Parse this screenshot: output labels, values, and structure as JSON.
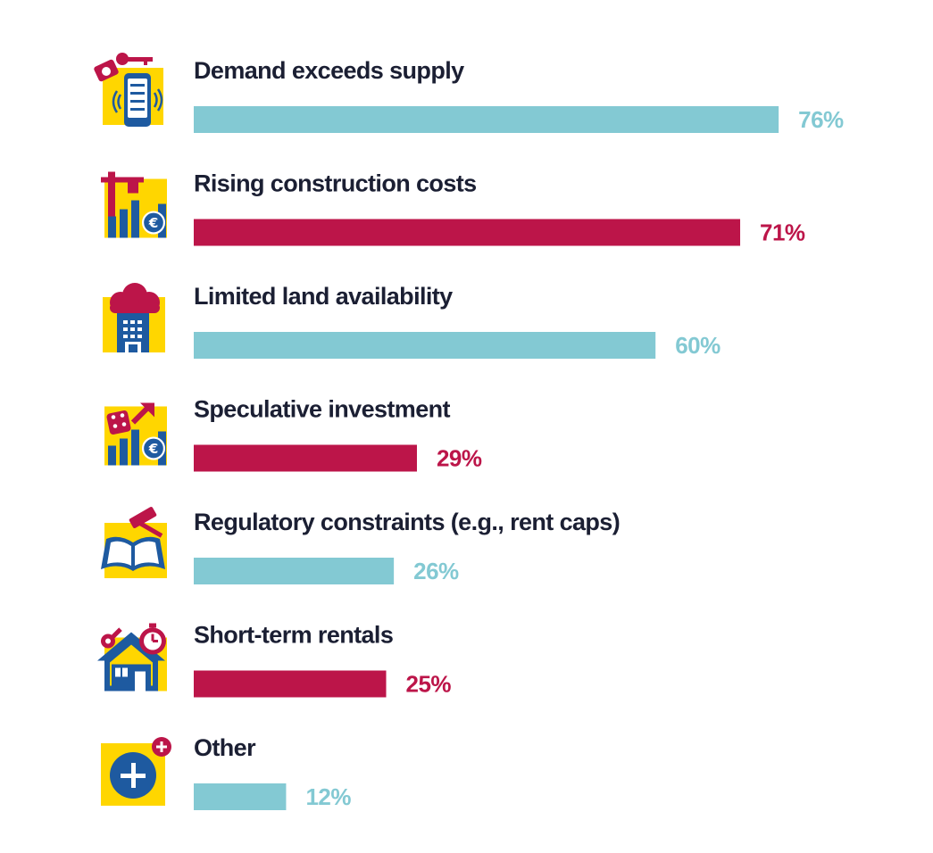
{
  "chart_data": {
    "type": "bar",
    "orientation": "horizontal",
    "title": "",
    "xlabel": "",
    "ylabel": "",
    "xlim": [
      0,
      100
    ],
    "value_suffix": "%",
    "grid": false,
    "categories": [
      "Demand exceeds supply",
      "Rising construction costs",
      "Limited land availability",
      "Speculative investment",
      "Regulatory constraints (e.g., rent caps)",
      "Short-term rentals",
      "Other"
    ],
    "values": [
      76,
      71,
      60,
      29,
      26,
      25,
      12
    ],
    "value_labels": [
      "76%",
      "71%",
      "60%",
      "29%",
      "26%",
      "25%",
      "12%"
    ],
    "bar_colors": [
      "#83c9d3",
      "#bc1549",
      "#83c9d3",
      "#bc1549",
      "#83c9d3",
      "#bc1549",
      "#83c9d3"
    ],
    "icons": [
      "smartphone-keys-icon",
      "construction-crane-costs-icon",
      "building-cloud-icon",
      "dice-investment-icon",
      "gavel-law-book-icon",
      "house-keys-stopwatch-icon",
      "plus-circle-icon"
    ]
  },
  "colors": {
    "teal": "#83c9d3",
    "crimson": "#bc1549",
    "yellow": "#ffd600",
    "blue": "#1e5aa0",
    "text": "#1b1f33"
  }
}
